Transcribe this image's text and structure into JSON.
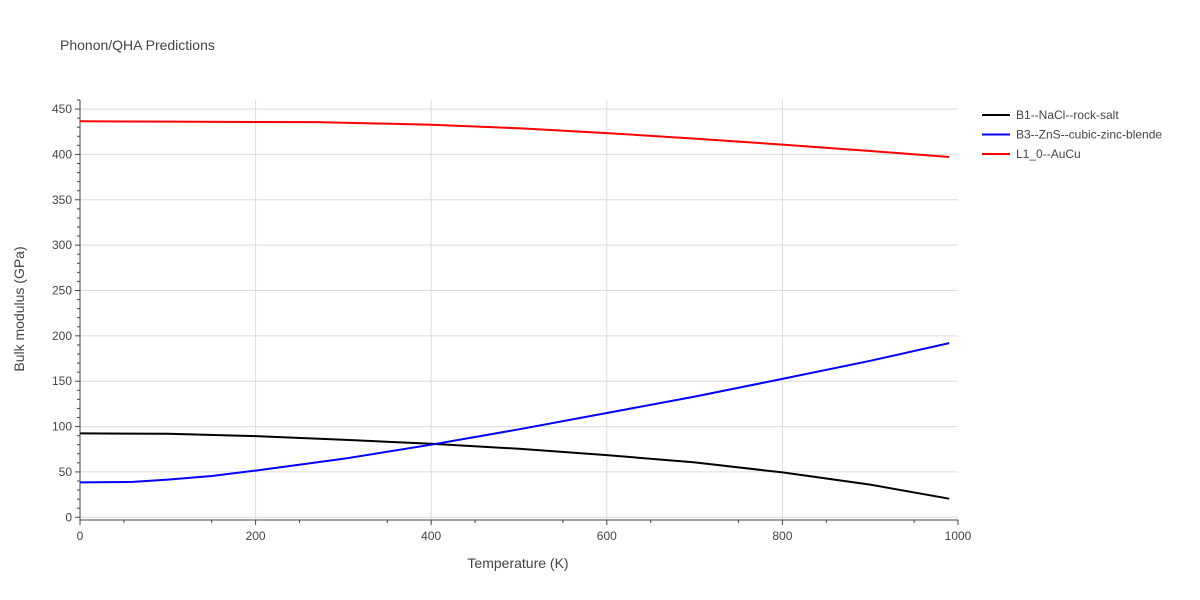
{
  "chart_data": {
    "type": "line",
    "title": "Phonon/QHA Predictions",
    "xlabel": "Temperature (K)",
    "ylabel": "Bulk modulus (GPa)",
    "xlim": [
      0,
      1000
    ],
    "ylim": [
      -3,
      460
    ],
    "x_ticks": [
      0,
      200,
      400,
      600,
      800,
      1000
    ],
    "y_ticks": [
      0,
      50,
      100,
      150,
      200,
      250,
      300,
      350,
      400,
      450
    ],
    "grid": true,
    "legend_position": "top-right, outside plot",
    "series": [
      {
        "name": "B1--NaCl--rock-salt",
        "color": "#000000",
        "x": [
          0,
          100,
          200,
          300,
          400,
          500,
          600,
          700,
          800,
          900,
          990
        ],
        "y": [
          92.5,
          92,
          89.5,
          85.5,
          81,
          75.5,
          68.5,
          60.5,
          49.5,
          36,
          20.5
        ]
      },
      {
        "name": "B3--ZnS--cubic-zinc-blende",
        "color": "#0000ff",
        "x": [
          0,
          60,
          100,
          150,
          200,
          300,
          400,
          500,
          600,
          700,
          800,
          900,
          990
        ],
        "y": [
          38.5,
          39,
          41.5,
          45.5,
          51.5,
          64.5,
          80,
          97,
          115,
          133,
          152.5,
          172.5,
          192
        ]
      },
      {
        "name": "L1_0--AuCu",
        "color": "#ff0000",
        "x": [
          0,
          100,
          200,
          270,
          400,
          500,
          600,
          700,
          800,
          900,
          990
        ],
        "y": [
          436.5,
          436.2,
          435.8,
          435.6,
          432.8,
          428.8,
          423.5,
          417.5,
          410.8,
          403.8,
          397.2
        ]
      }
    ]
  }
}
